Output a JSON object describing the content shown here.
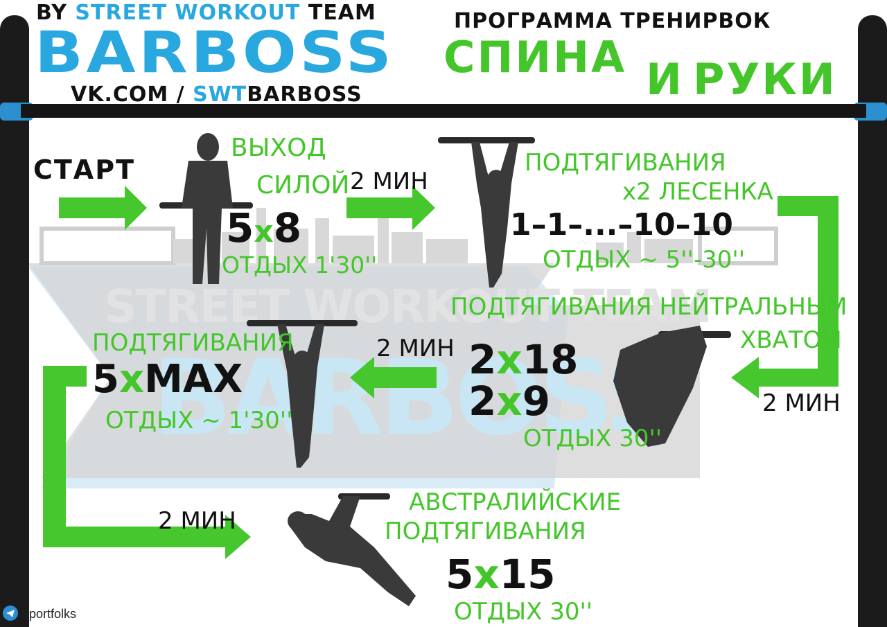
{
  "header": {
    "by_prefix": "BY ",
    "team_name": "STREET WORKOUT",
    "team_suffix": " TEAM",
    "brand": "BARBOSS",
    "vk_prefix": "VK.COM / ",
    "vk_swt": "SWT",
    "vk_name": "BARBOSS"
  },
  "title": {
    "program": "ПРОГРАММА ТРЕНИРВОК",
    "word1": "СПИНА",
    "word2": "И",
    "word3": "РУКИ"
  },
  "steps": {
    "start": "СТАРТ",
    "muscle_up": {
      "line1": "ВЫХОД",
      "line2": "СИЛОЙ",
      "sets": "5",
      "x": "x",
      "reps": "8",
      "rest": "ОТДЫХ 1'30''"
    },
    "rest_1": "2 МИН",
    "ladder": {
      "line1": "ПОДТЯГИВАНИЯ",
      "line2": "x2 ЛЕСЕНКА",
      "scheme": "1–1–...–10–10",
      "rest": "ОТДЫХ ~ 5''-30''"
    },
    "neutral": {
      "line1": "ПОДТЯГИВАНИЯ  НЕЙТРАЛЬНЫМ",
      "line2": "ХВАТОМ",
      "set1_a": "2",
      "set1_x": "x",
      "set1_b": "18",
      "set2_a": "2",
      "set2_x": "x",
      "set2_b": "9",
      "rest": "ОТДЫХ 30''"
    },
    "rest_2": "2 МИН",
    "rest_3": "2 МИН",
    "pullups": {
      "line1": "ПОДТЯГИВАНИЯ",
      "sets": "5",
      "x": "x",
      "reps": "MAX",
      "rest": "ОТДЫХ ~ 1'30''"
    },
    "rest_4": "2 МИН",
    "australian": {
      "line1": "АВСТРАЛИЙСКИЕ",
      "line2": "ПОДТЯГИВАНИЯ",
      "sets": "5",
      "x": "x",
      "reps": "15",
      "rest": "ОТДЫХ 30''"
    }
  },
  "watermark": {
    "line1": "STREET WORKOUT TEAM",
    "line2": "BARBOSS"
  },
  "footer": {
    "source": "Sportfolks"
  },
  "colors": {
    "green": "#44c62a",
    "blue": "#29a8e0",
    "black": "#111111"
  }
}
